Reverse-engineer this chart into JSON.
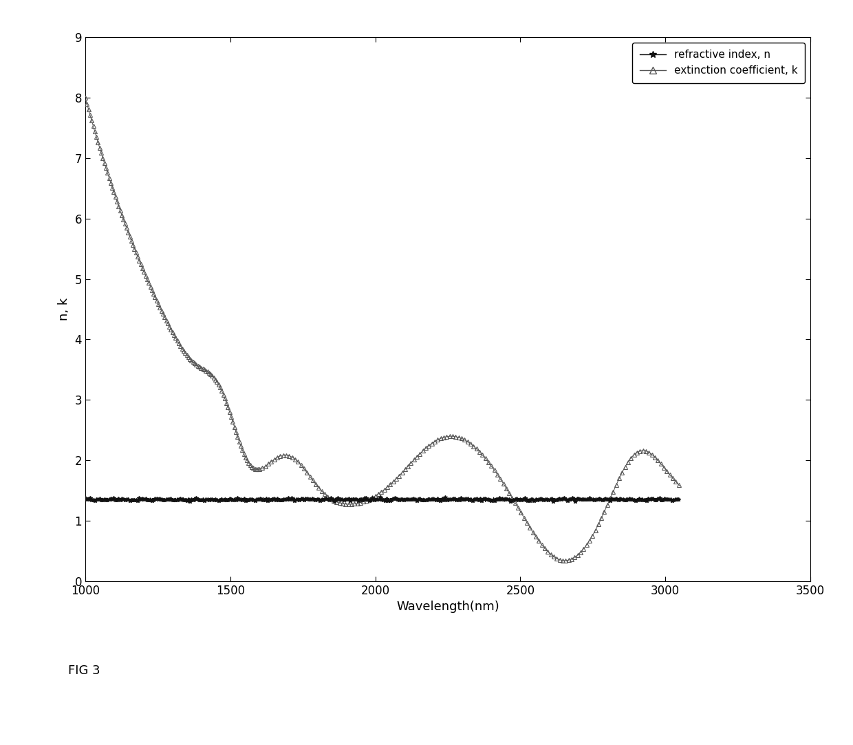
{
  "xlim": [
    1000,
    3500
  ],
  "ylim": [
    0,
    9
  ],
  "xticks": [
    1000,
    1500,
    2000,
    2500,
    3000,
    3500
  ],
  "yticks": [
    0,
    1,
    2,
    3,
    4,
    5,
    6,
    7,
    8,
    9
  ],
  "xlabel": "Wavelength(nm)",
  "ylabel": "n, k",
  "legend_labels": [
    "refractive index, n",
    "extinction coefficient, k"
  ],
  "n_color": "#111111",
  "k_color": "#555555",
  "fig_label": "FIG 3",
  "background_color": "#ffffff",
  "figsize": [
    12.4,
    10.83
  ],
  "dpi": 100
}
